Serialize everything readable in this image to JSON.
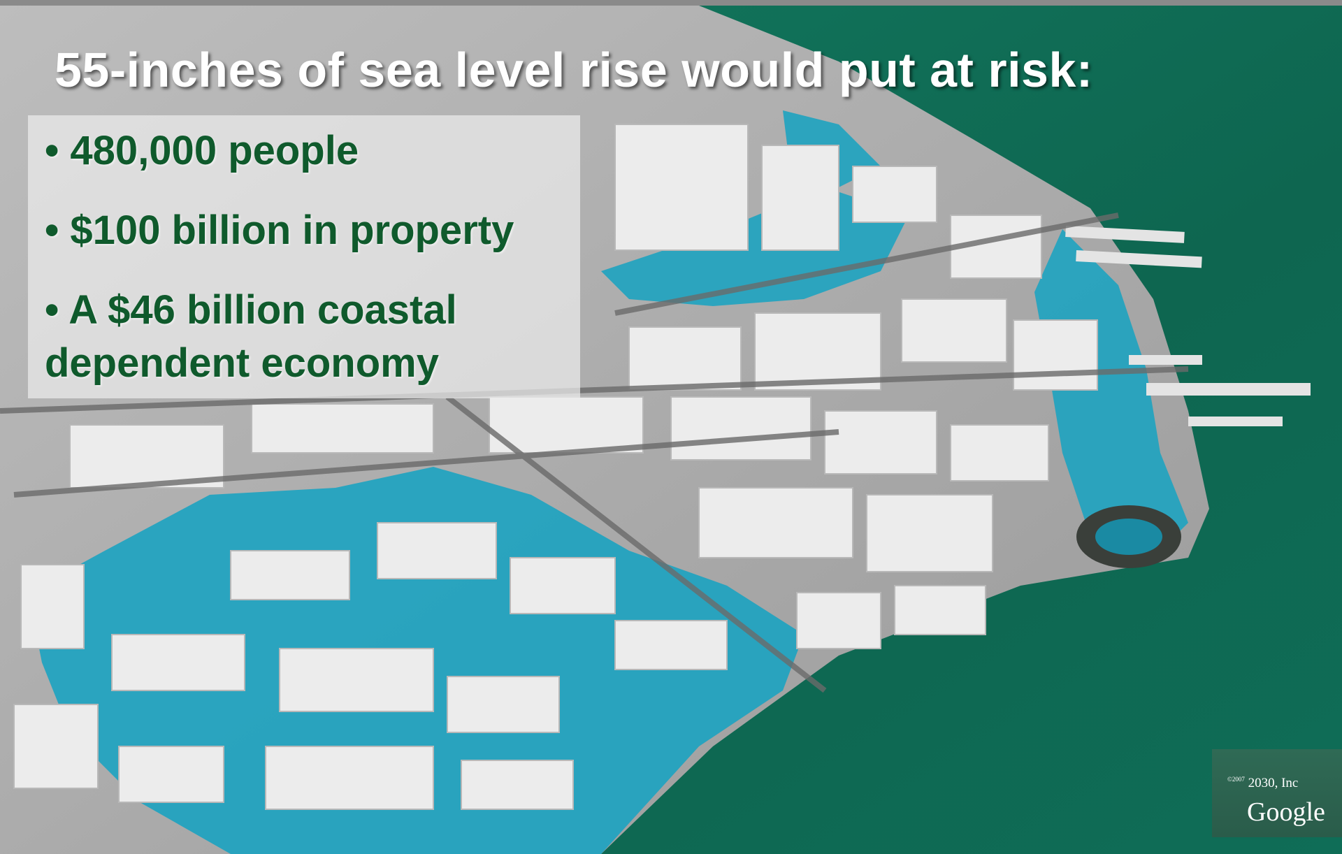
{
  "slide": {
    "title": "55-inches of sea level rise would put at risk:",
    "bullets": [
      "• 480,000 people",
      "• $100 billion in property",
      "• A $46 billion coastal dependent economy"
    ]
  },
  "image_credit": {
    "copyright_symbol": "©2007",
    "line1": "2030, Inc",
    "logo": "Google"
  },
  "colors": {
    "water": "#1a9fba",
    "bay": "#0d6a52",
    "bullet_text": "#0f5a2c",
    "title_text": "#ffffff"
  }
}
